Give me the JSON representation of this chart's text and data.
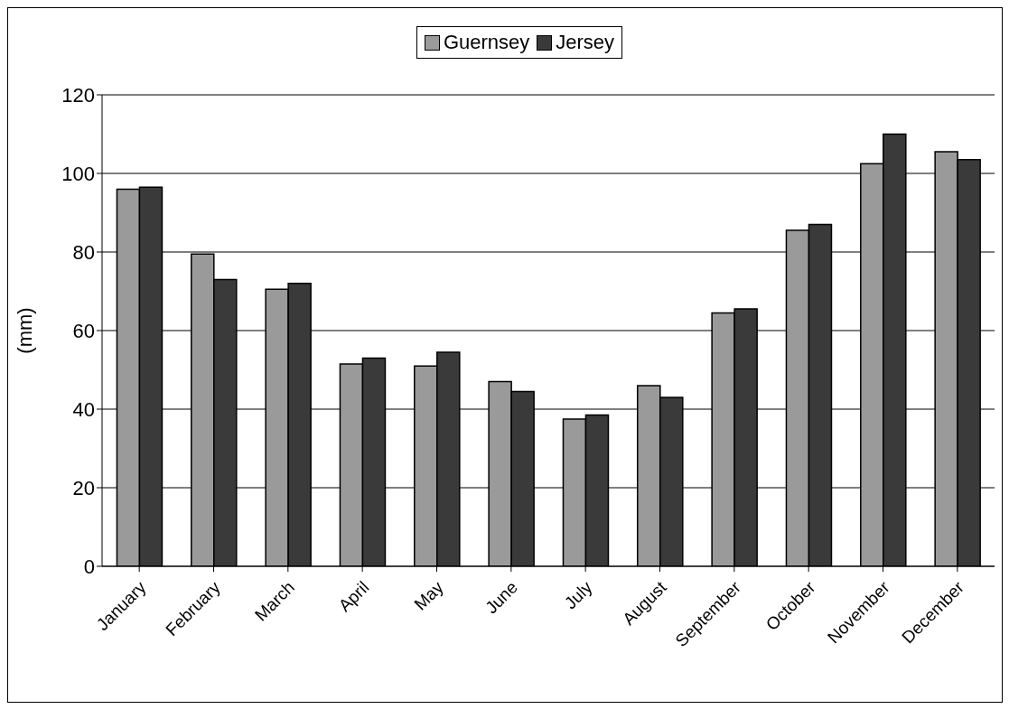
{
  "chart_data": {
    "type": "bar",
    "ylabel": "(mm)",
    "categories": [
      "January",
      "February",
      "March",
      "April",
      "May",
      "June",
      "July",
      "August",
      "September",
      "October",
      "November",
      "December"
    ],
    "series": [
      {
        "name": "Guernsey",
        "color": "#9a9a9a",
        "values": [
          96,
          79.5,
          70.5,
          51.5,
          51,
          47,
          37.5,
          46,
          64.5,
          85.5,
          102.5,
          105.5
        ]
      },
      {
        "name": "Jersey",
        "color": "#3a3a3a",
        "values": [
          96.5,
          73,
          72,
          53,
          54.5,
          44.5,
          38.5,
          43,
          65.5,
          87,
          110,
          103.5
        ]
      }
    ],
    "ylim": [
      0,
      120
    ],
    "yticks": [
      0,
      20,
      40,
      60,
      80,
      100,
      120
    ],
    "grid": "y",
    "legend": "top"
  }
}
